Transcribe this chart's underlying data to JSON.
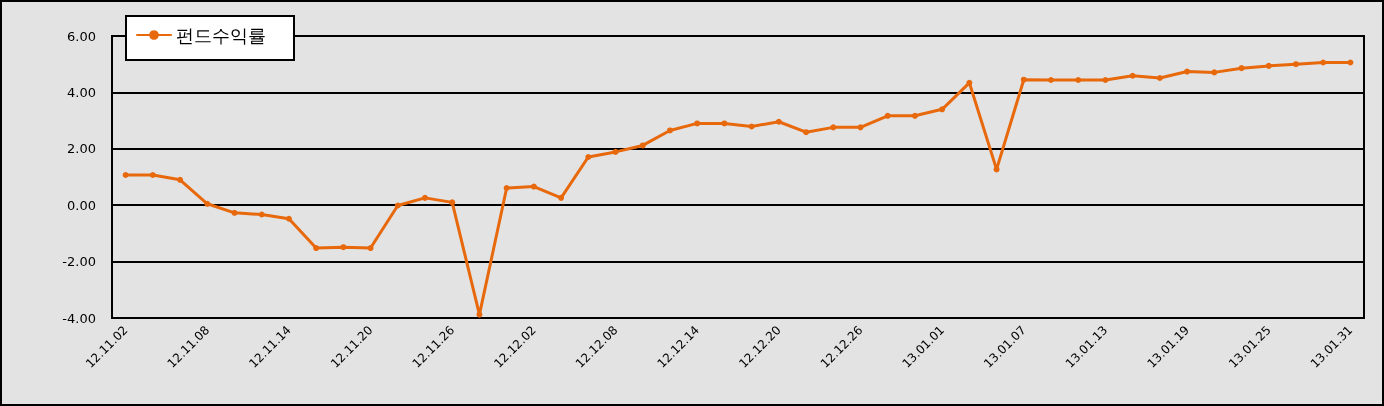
{
  "chart_data": {
    "type": "line",
    "legend": "top left",
    "grid": "y",
    "marker": "circle",
    "line_style": "solid",
    "categories": [
      "12.11.02",
      null,
      null,
      "12.11.08",
      null,
      null,
      "12.11.14",
      null,
      null,
      "12.11.20",
      null,
      null,
      "12.11.26",
      null,
      null,
      "12.12.02",
      null,
      null,
      "12.12.08",
      null,
      null,
      "12.12.14",
      null,
      null,
      "12.12.20",
      null,
      null,
      "12.12.26",
      null,
      null,
      "13.01.01",
      null,
      null,
      "13.01.07",
      null,
      null,
      "13.01.13",
      null,
      null,
      "13.01.19",
      null,
      null,
      "13.01.25",
      null,
      null,
      "13.01.31"
    ],
    "series": [
      {
        "name": "펀드수익률",
        "color": "#e8680c",
        "values": [
          1.07,
          1.07,
          0.9,
          0.05,
          -0.27,
          -0.33,
          -0.48,
          -1.52,
          -1.49,
          -1.52,
          -0.01,
          0.26,
          0.1,
          -3.88,
          0.61,
          0.66,
          0.26,
          1.71,
          1.89,
          2.12,
          2.65,
          2.9,
          2.9,
          2.79,
          2.96,
          2.59,
          2.76,
          2.76,
          3.17,
          3.17,
          3.4,
          4.34,
          1.27,
          4.45,
          4.44,
          4.44,
          4.44,
          4.59,
          4.51,
          4.74,
          4.71,
          4.86,
          4.94,
          5.0,
          5.06,
          5.06
        ]
      }
    ],
    "ylim": [
      -4,
      6
    ],
    "yticks": [
      {
        "value": -4,
        "label": "-4.00"
      },
      {
        "value": -2,
        "label": "-2.00"
      },
      {
        "value": 0,
        "label": "0.00"
      },
      {
        "value": 2,
        "label": "2.00"
      },
      {
        "value": 4,
        "label": "4.00"
      },
      {
        "value": 6,
        "label": "6.00"
      }
    ]
  }
}
